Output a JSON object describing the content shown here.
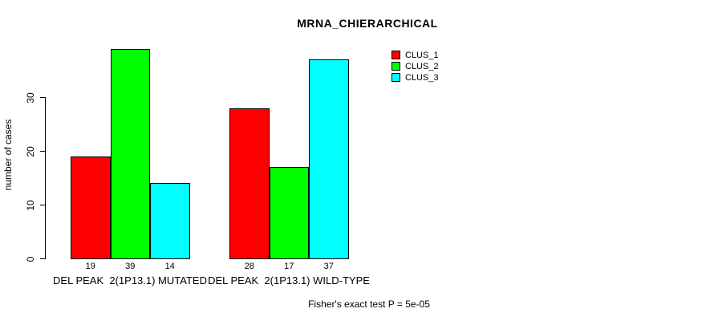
{
  "page": {
    "background": "#ffffff",
    "text_color": "#000000"
  },
  "chart_data": {
    "type": "bar",
    "title": "MRNA_CHIERARCHICAL",
    "ylabel": "number of cases",
    "xlabel": "",
    "categories": [
      "DEL PEAK  2(1P13.1) MUTATED",
      "DEL PEAK  2(1P13.1) WILD-TYPE"
    ],
    "series": [
      {
        "name": "CLUS_1",
        "color": "#ff0000",
        "values": [
          19,
          28
        ]
      },
      {
        "name": "CLUS_2",
        "color": "#00ff00",
        "values": [
          39,
          17
        ]
      },
      {
        "name": "CLUS_3",
        "color": "#00ffff",
        "values": [
          14,
          37
        ]
      }
    ],
    "bar_value_labels": [
      [
        19,
        39,
        14
      ],
      [
        28,
        17,
        37
      ]
    ],
    "yticks": [
      0,
      10,
      20,
      30
    ],
    "ylim": [
      0,
      39
    ],
    "grid": false,
    "legend_position": "top-right",
    "annotation": "Fisher's exact test P = 5e-05"
  }
}
